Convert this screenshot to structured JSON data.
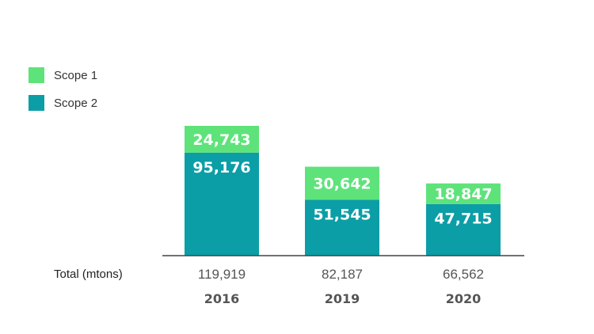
{
  "chart_data": {
    "type": "bar",
    "stacked": true,
    "categories": [
      "2016",
      "2019",
      "2020"
    ],
    "series": [
      {
        "name": "Scope 2",
        "values": [
          95176,
          51545,
          47715
        ],
        "color": "#0b9ea6"
      },
      {
        "name": "Scope 1",
        "values": [
          24743,
          30642,
          18847
        ],
        "color": "#5ee37a"
      }
    ],
    "value_labels": {
      "Scope 2": [
        "95,176",
        "51,545",
        "47,715"
      ],
      "Scope 1": [
        "24,743",
        "30,642",
        "18,847"
      ]
    },
    "totals_label": "Total  (mtons)",
    "totals": [
      "119,919",
      "82,187",
      "66,562"
    ],
    "legend": [
      {
        "label": "Scope 1",
        "color": "#5ee37a"
      },
      {
        "label": "Scope 2",
        "color": "#0b9ea6"
      }
    ],
    "legend_position": "top-left",
    "axis_color": "#444444",
    "grid": false
  }
}
